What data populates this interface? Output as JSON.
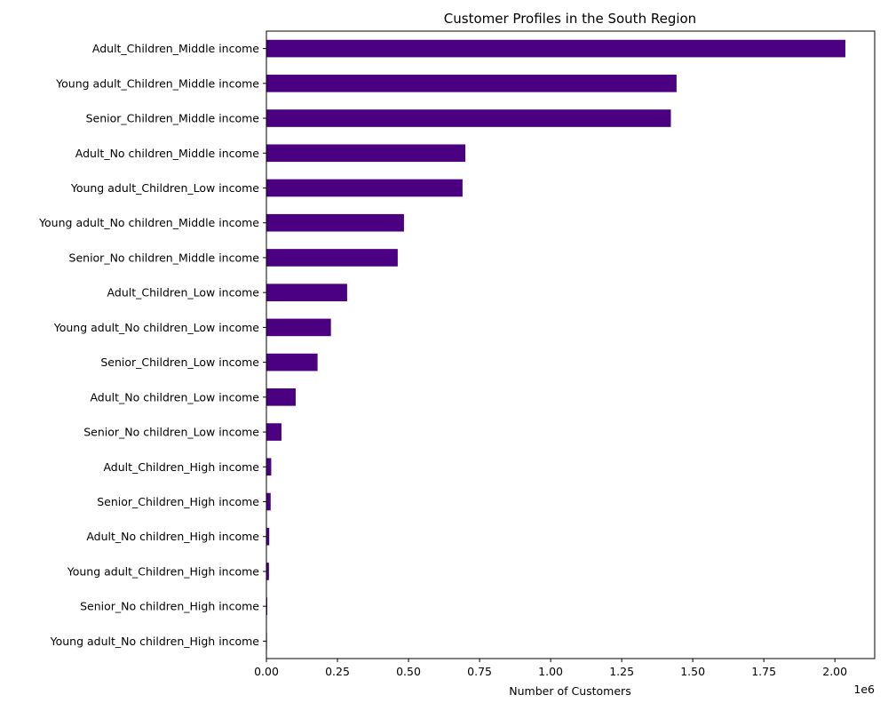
{
  "chart_data": {
    "type": "bar",
    "orientation": "horizontal",
    "title": "Customer Profiles in the South Region",
    "xlabel": "Number of Customers",
    "ylabel": "",
    "offset_text": "1e6",
    "xlim": [
      0,
      2140000
    ],
    "xticks": [
      0,
      250000,
      500000,
      750000,
      1000000,
      1250000,
      1500000,
      1750000,
      2000000
    ],
    "xtick_labels": [
      "0.00",
      "0.25",
      "0.50",
      "0.75",
      "1.00",
      "1.25",
      "1.50",
      "1.75",
      "2.00"
    ],
    "grid": false,
    "bar_color": "#4b0082",
    "categories": [
      "Adult_Children_Middle income",
      "Young adult_Children_Middle income",
      "Senior_Children_Middle income",
      "Adult_No children_Middle income",
      "Young adult_Children_Low income",
      "Young adult_No children_Middle income",
      "Senior_No children_Middle income",
      "Adult_Children_Low income",
      "Young adult_No children_Low income",
      "Senior_Children_Low income",
      "Adult_No children_Low income",
      "Senior_No children_Low income",
      "Adult_Children_High income",
      "Senior_Children_High income",
      "Adult_No children_High income",
      "Young adult_Children_High income",
      "Senior_No children_High income",
      "Young adult_No children_High income"
    ],
    "values": [
      2037000,
      1443000,
      1423000,
      700000,
      690000,
      484000,
      462000,
      284000,
      227000,
      180000,
      103000,
      53000,
      17000,
      15000,
      10000,
      9000,
      3000,
      2000
    ]
  }
}
